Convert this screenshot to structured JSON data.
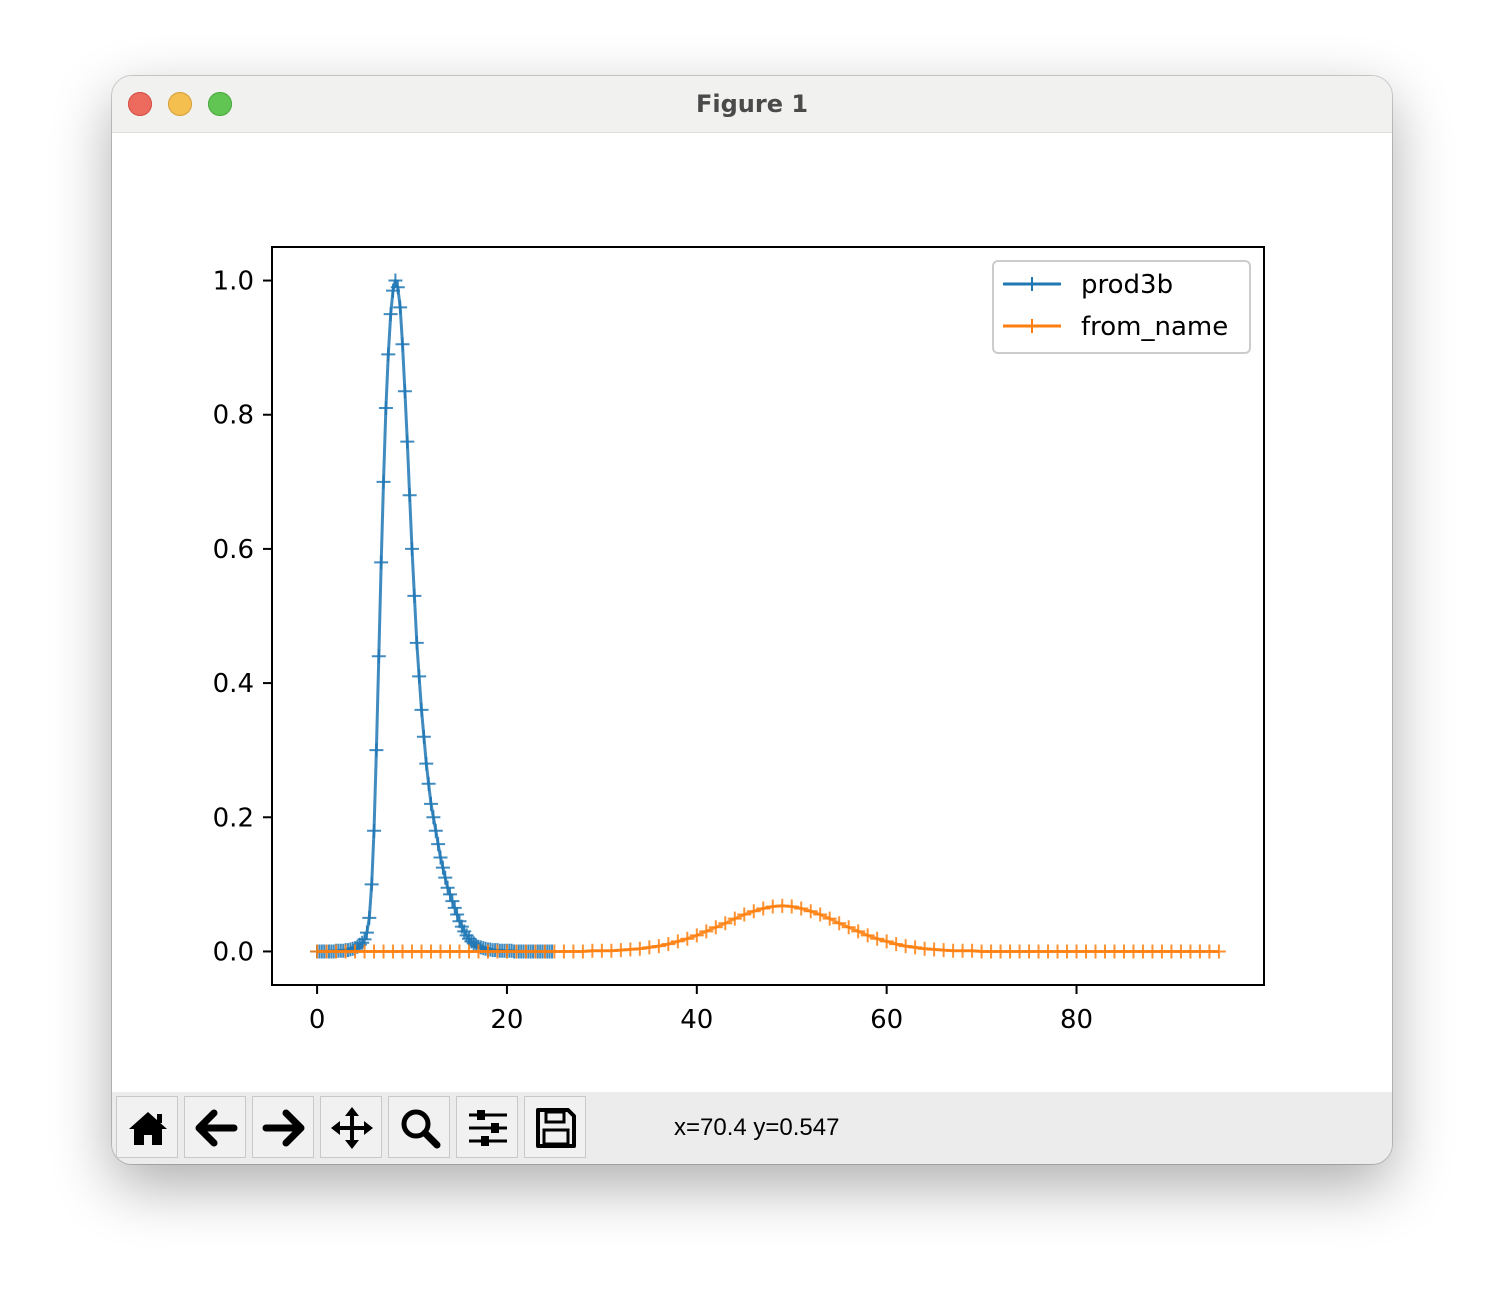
{
  "window": {
    "title": "Figure 1"
  },
  "toolbar": {
    "buttons": [
      {
        "name": "home-button",
        "icon": "home-icon"
      },
      {
        "name": "back-button",
        "icon": "arrow-left-icon"
      },
      {
        "name": "forward-button",
        "icon": "arrow-right-icon"
      },
      {
        "name": "pan-button",
        "icon": "move-icon"
      },
      {
        "name": "zoom-button",
        "icon": "magnifier-icon"
      },
      {
        "name": "configure-subplots-button",
        "icon": "sliders-icon"
      },
      {
        "name": "save-button",
        "icon": "floppy-disk-icon"
      }
    ],
    "coords": "x=70.4 y=0.547"
  },
  "chart_data": {
    "type": "line",
    "title": "",
    "xlabel": "",
    "ylabel": "",
    "xlim": [
      -4.75,
      99.75
    ],
    "ylim": [
      -0.05,
      1.05
    ],
    "xticks": [
      0,
      20,
      40,
      60,
      80
    ],
    "yticks": [
      0.0,
      0.2,
      0.4,
      0.6,
      0.8,
      1.0
    ],
    "xtick_labels": [
      "0",
      "20",
      "40",
      "60",
      "80"
    ],
    "ytick_labels": [
      "0.0",
      "0.2",
      "0.4",
      "0.6",
      "0.8",
      "1.0"
    ],
    "grid": false,
    "legend": "upper-right",
    "marker": "+",
    "series": [
      {
        "name": "prod3b",
        "color": "#1f77b4",
        "x": [
          0,
          0.25,
          0.5,
          0.75,
          1.0,
          1.25,
          1.5,
          1.75,
          2.0,
          2.25,
          2.5,
          2.75,
          3.0,
          3.25,
          3.5,
          3.75,
          4.0,
          4.25,
          4.5,
          4.75,
          5.0,
          5.25,
          5.5,
          5.75,
          6.0,
          6.25,
          6.5,
          6.75,
          7.0,
          7.25,
          7.5,
          7.75,
          8.0,
          8.25,
          8.5,
          8.75,
          9.0,
          9.25,
          9.5,
          9.75,
          10.0,
          10.25,
          10.5,
          10.75,
          11.0,
          11.25,
          11.5,
          11.75,
          12.0,
          12.25,
          12.5,
          12.75,
          13.0,
          13.25,
          13.5,
          13.75,
          14.0,
          14.25,
          14.5,
          14.75,
          15.0,
          15.25,
          15.5,
          15.75,
          16.0,
          16.25,
          16.5,
          16.75,
          17.0,
          17.25,
          17.5,
          17.75,
          18.0,
          18.25,
          18.5,
          18.75,
          19.0,
          19.25,
          19.5,
          19.75,
          20.0,
          20.25,
          20.5,
          20.75,
          21.0,
          21.25,
          21.5,
          21.75,
          22.0,
          22.25,
          22.5,
          22.75,
          23.0,
          23.25,
          23.5,
          23.75,
          24.0,
          24.25,
          24.5,
          24.75
        ],
        "y": [
          0.0,
          0.0,
          0.0,
          0.0,
          0.0,
          0.0,
          0.0,
          0.0,
          0.001,
          0.001,
          0.001,
          0.001,
          0.002,
          0.002,
          0.003,
          0.004,
          0.005,
          0.007,
          0.01,
          0.013,
          0.018,
          0.028,
          0.05,
          0.1,
          0.18,
          0.3,
          0.44,
          0.58,
          0.7,
          0.81,
          0.89,
          0.95,
          0.985,
          1.0,
          0.99,
          0.96,
          0.905,
          0.835,
          0.76,
          0.68,
          0.6,
          0.53,
          0.46,
          0.41,
          0.36,
          0.32,
          0.28,
          0.25,
          0.22,
          0.2,
          0.18,
          0.16,
          0.14,
          0.125,
          0.11,
          0.095,
          0.085,
          0.075,
          0.065,
          0.055,
          0.045,
          0.037,
          0.03,
          0.024,
          0.019,
          0.015,
          0.012,
          0.009,
          0.007,
          0.006,
          0.005,
          0.004,
          0.003,
          0.003,
          0.002,
          0.002,
          0.002,
          0.001,
          0.001,
          0.001,
          0.001,
          0.001,
          0.001,
          0.0,
          0.0,
          0.0,
          0.0,
          0.0,
          0.0,
          0.0,
          0.0,
          0.0,
          0.0,
          0.0,
          0.0,
          0.0,
          0.0,
          0.0,
          0.0,
          0.0
        ]
      },
      {
        "name": "from_name",
        "color": "#ff7f0e",
        "x": [
          0,
          1,
          2,
          3,
          4,
          5,
          6,
          7,
          8,
          9,
          10,
          11,
          12,
          13,
          14,
          15,
          16,
          17,
          18,
          19,
          20,
          21,
          22,
          23,
          24,
          25,
          26,
          27,
          28,
          29,
          30,
          31,
          32,
          33,
          34,
          35,
          36,
          37,
          38,
          39,
          40,
          41,
          42,
          43,
          44,
          45,
          46,
          47,
          48,
          49,
          50,
          51,
          52,
          53,
          54,
          55,
          56,
          57,
          58,
          59,
          60,
          61,
          62,
          63,
          64,
          65,
          66,
          67,
          68,
          69,
          70,
          71,
          72,
          73,
          74,
          75,
          76,
          77,
          78,
          79,
          80,
          81,
          82,
          83,
          84,
          85,
          86,
          87,
          88,
          89,
          90,
          91,
          92,
          93,
          94,
          95
        ],
        "y": [
          0.0,
          0.0,
          0.0,
          0.0,
          0.0,
          0.0,
          0.0,
          0.0,
          0.0,
          0.0,
          0.0,
          0.0,
          0.0,
          0.0,
          0.0,
          0.0,
          0.0,
          0.0,
          0.0,
          0.0,
          0.0,
          0.0,
          0.0,
          0.0,
          0.0,
          0.0,
          0.0,
          0.0,
          0.0,
          0.001,
          0.001,
          0.001,
          0.002,
          0.003,
          0.004,
          0.006,
          0.008,
          0.011,
          0.015,
          0.019,
          0.024,
          0.03,
          0.036,
          0.042,
          0.049,
          0.055,
          0.06,
          0.064,
          0.067,
          0.068,
          0.067,
          0.064,
          0.06,
          0.055,
          0.049,
          0.042,
          0.036,
          0.03,
          0.024,
          0.019,
          0.015,
          0.011,
          0.008,
          0.006,
          0.004,
          0.003,
          0.002,
          0.001,
          0.001,
          0.001,
          0.0,
          0.0,
          0.0,
          0.0,
          0.0,
          0.0,
          0.0,
          0.0,
          0.0,
          0.0,
          0.0,
          0.0,
          0.0,
          0.0,
          0.0,
          0.0,
          0.0,
          0.0,
          0.0,
          0.0,
          0.0,
          0.0,
          0.0,
          0.0,
          0.0,
          0.0
        ]
      }
    ]
  }
}
